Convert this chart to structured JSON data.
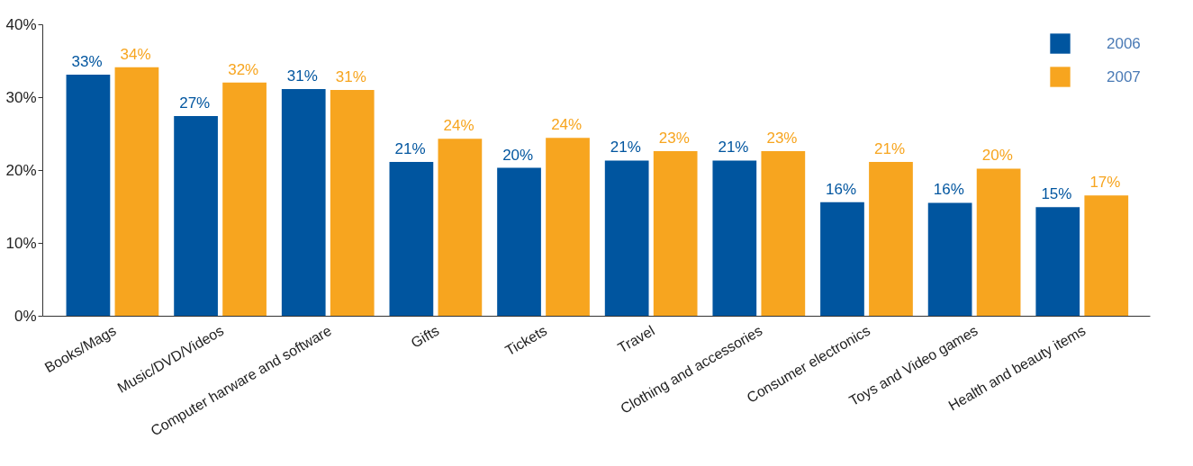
{
  "chart_data": {
    "type": "bar",
    "categories": [
      "Books/Mags",
      "Music/DVD/Videos",
      "Computer harware and software",
      "Gifts",
      "Tickets",
      "Travel",
      "Clothing and accessories",
      "Consumer electronics",
      "Toys and Video games",
      "Health and beauty items"
    ],
    "series": [
      {
        "name": "2006",
        "color": "#00559f",
        "values": [
          33.1,
          27.4,
          31.1,
          21.1,
          20.3,
          21.3,
          21.3,
          15.6,
          15.5,
          14.9
        ],
        "value_labels": [
          "33%",
          "27%",
          "31%",
          "21%",
          "20%",
          "21%",
          "21%",
          "16%",
          "16%",
          "15%"
        ]
      },
      {
        "name": "2007",
        "color": "#f7a51f",
        "values": [
          34.1,
          32.0,
          31.0,
          24.3,
          24.4,
          22.6,
          22.6,
          21.1,
          20.2,
          16.5
        ],
        "value_labels": [
          "34%",
          "32%",
          "31%",
          "24%",
          "24%",
          "23%",
          "23%",
          "21%",
          "20%",
          "17%"
        ]
      }
    ],
    "ylim": [
      0,
      40
    ],
    "yticks": [
      {
        "value": 0,
        "label": "0%"
      },
      {
        "value": 10,
        "label": "10%"
      },
      {
        "value": 20,
        "label": "20%"
      },
      {
        "value": 30,
        "label": "30%"
      },
      {
        "value": 40,
        "label": "40%"
      }
    ],
    "legend": "top right",
    "grid": false
  }
}
